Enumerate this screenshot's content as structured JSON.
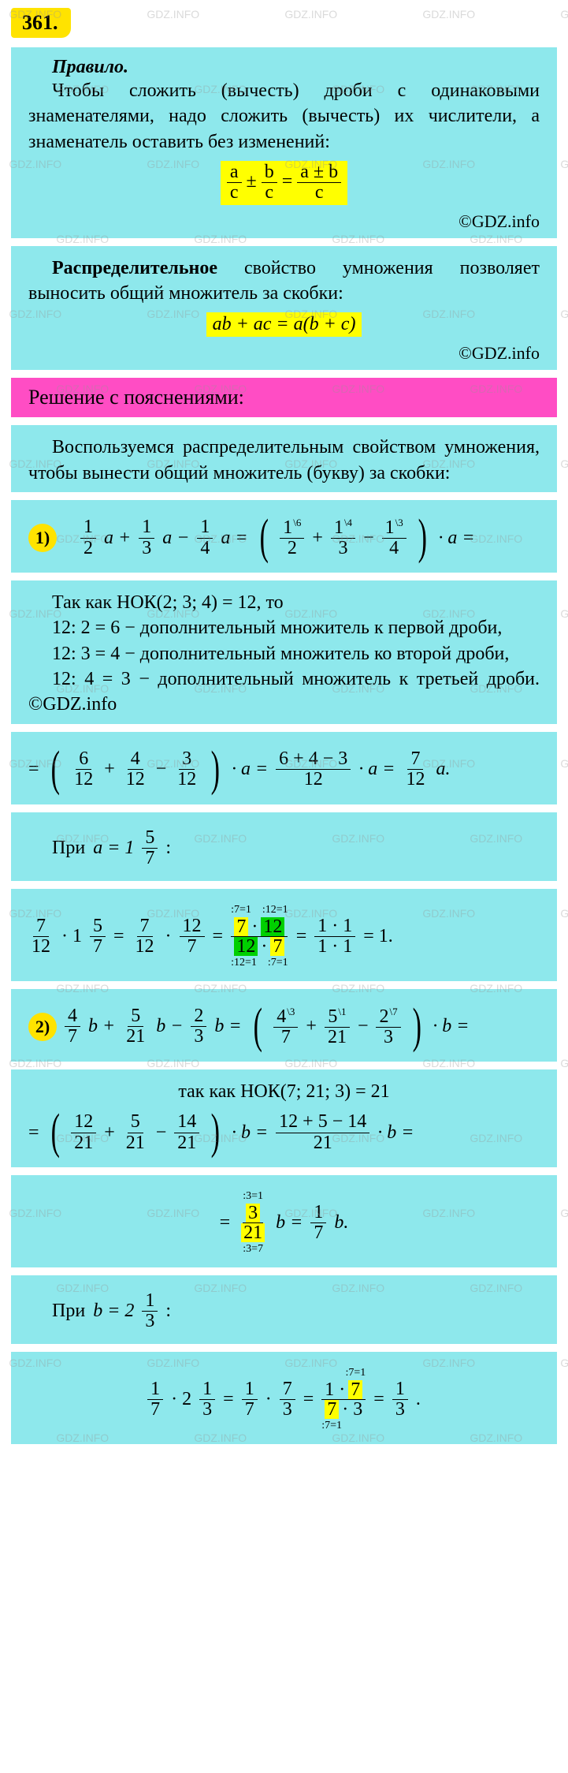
{
  "problem_number": "361.",
  "rule": {
    "title": "Правило.",
    "text": "Чтобы сложить (вычесть) дроби с одинаковыми знаменателями, надо сложить (вычесть) их числители, а знаменатель оставить без изменений:",
    "formula_left_n1": "a",
    "formula_left_d1": "c",
    "formula_pm": "±",
    "formula_left_n2": "b",
    "formula_left_d2": "c",
    "formula_eq": "=",
    "formula_right_n": "a ± b",
    "formula_right_d": "c",
    "copyright": "©GDZ.info"
  },
  "distributive": {
    "title": "Распределительное",
    "text": " свойство умножения позволяет выносить общий множитель за скобки:",
    "formula": "ab + ac = a(b + c)",
    "copyright": "©GDZ.info"
  },
  "section_header": "Решение с пояснениями:",
  "intro_text": "Воспользуемся распределительным свойством умножения, чтобы вынести общий множитель (букву) за скобки:",
  "p1": {
    "badge": "1)",
    "f1": {
      "n": "1",
      "d": "2"
    },
    "v1": "a +",
    "f2": {
      "n": "1",
      "d": "3"
    },
    "v2": "a −",
    "f3": {
      "n": "1",
      "d": "4"
    },
    "v3": "a =",
    "lp": "(",
    "rp": ")",
    "s1": "\\6",
    "s2": "\\4",
    "s3": "\\3",
    "tail": "· a ="
  },
  "lcm1": {
    "l1": "Так как НОК(2; 3; 4) = 12, то",
    "l2": "12: 2 = 6 − дополнительный множитель к первой дроби,",
    "l3": "12: 3 = 4 − дополнительный множитель ко второй дроби,",
    "l4": "12: 4 = 3 − дополнительный множитель к третьей дроби. ©GDZ.info"
  },
  "p1b": {
    "eq": "=",
    "f1": {
      "n": "6",
      "d": "12"
    },
    "p1": "+",
    "f2": {
      "n": "4",
      "d": "12"
    },
    "p2": "−",
    "f3": {
      "n": "3",
      "d": "12"
    },
    "mid": "· a =",
    "f4": {
      "n": "6 + 4 − 3",
      "d": "12"
    },
    "mid2": "· a =",
    "f5": {
      "n": "7",
      "d": "12"
    },
    "tail": "a."
  },
  "at1": {
    "label": "При",
    "var": "a = 1",
    "fn": "5",
    "fd": "7",
    "colon": ":"
  },
  "calc1": {
    "f1": {
      "n": "7",
      "d": "12"
    },
    "dot1": "· 1",
    "f2": {
      "n": "5",
      "d": "7"
    },
    "eq1": "=",
    "f3": {
      "n": "7",
      "d": "12"
    },
    "dot2": "·",
    "f4": {
      "n": "12",
      "d": "7"
    },
    "eq2": "=",
    "top1": ":7=1",
    "top2": ":12=1",
    "bot1": ":12=1",
    "bot2": ":7=1",
    "n1": "7",
    "n2": "12",
    "nmid": "·",
    "d1": "12",
    "d2": "7",
    "dmid": "·",
    "eq3": "=",
    "f5": {
      "n": "1 · 1",
      "d": "1 · 1"
    },
    "eq4": "= 1."
  },
  "p2": {
    "badge": "2)",
    "f1": {
      "n": "4",
      "d": "7"
    },
    "v1": "b +",
    "f2": {
      "n": "5",
      "d": "21"
    },
    "v2": "b −",
    "f3": {
      "n": "2",
      "d": "3"
    },
    "v3": "b =",
    "s1": "\\3",
    "s2": "\\1",
    "s3": "\\7",
    "tail": "· b ="
  },
  "lcm2": "так как НОК(7; 21; 3) = 21",
  "p2b": {
    "eq": "=",
    "f1": {
      "n": "12",
      "d": "21"
    },
    "p1": "+",
    "f2": {
      "n": "5",
      "d": "21"
    },
    "p2": "−",
    "f3": {
      "n": "14",
      "d": "21"
    },
    "mid": "· b =",
    "f4": {
      "n": "12 + 5 − 14",
      "d": "21"
    },
    "tail": "· b ="
  },
  "p2c": {
    "eq": "=",
    "top": ":3=1",
    "bot": ":3=7",
    "fn": "3",
    "fd": "21",
    "mid": "b =",
    "f2": {
      "n": "1",
      "d": "7"
    },
    "tail": "b."
  },
  "at2": {
    "label": "При",
    "var": "b = 2",
    "fn": "1",
    "fd": "3",
    "colon": ":"
  },
  "calc2": {
    "f1": {
      "n": "1",
      "d": "7"
    },
    "dot1": "· 2",
    "f2": {
      "n": "1",
      "d": "3"
    },
    "eq1": "=",
    "f3": {
      "n": "1",
      "d": "7"
    },
    "dot2": "·",
    "f4": {
      "n": "7",
      "d": "3"
    },
    "eq2": "=",
    "top": ":7=1",
    "bot": ":7=1",
    "n1": "1 ·",
    "n2": "7",
    "d1": "7",
    "d2": "· 3",
    "eq3": "=",
    "f5": {
      "n": "1",
      "d": "3"
    },
    "tail": "."
  },
  "watermark": "GDZ.INFO",
  "colors": {
    "yellow": "#ffe300",
    "cyan": "#8ee8ec",
    "magenta": "#ff4dc4",
    "green": "#00d000",
    "highlight": "#ffff00"
  }
}
